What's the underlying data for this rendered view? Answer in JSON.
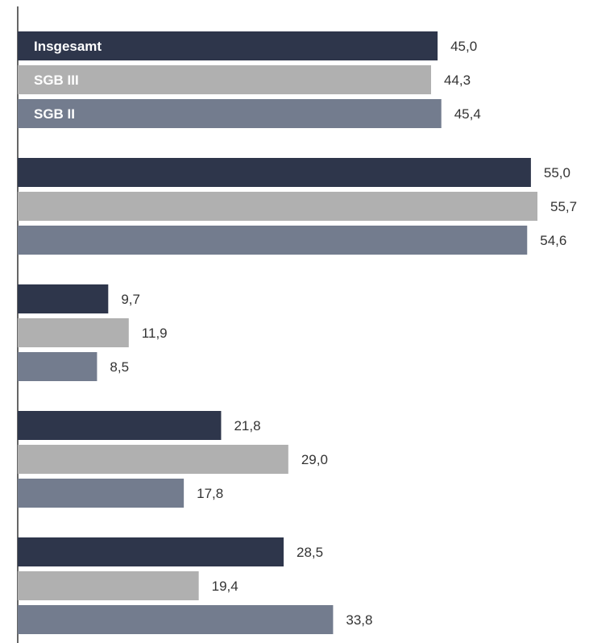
{
  "chart_data": {
    "type": "bar",
    "orientation": "horizontal",
    "groups": 5,
    "series": [
      {
        "name": "Insgesamt",
        "color": "#2e364b",
        "values": [
          45.0,
          55.0,
          9.7,
          21.8,
          28.5
        ],
        "labels": [
          "45,0",
          "55,0",
          "9,7",
          "21,8",
          "28,5"
        ]
      },
      {
        "name": "SGB III",
        "color": "#b0b0b0",
        "values": [
          44.3,
          55.7,
          11.9,
          29.0,
          19.4
        ],
        "labels": [
          "44,3",
          "55,7",
          "11,9",
          "29,0",
          "19,4"
        ]
      },
      {
        "name": "SGB II",
        "color": "#737c8e",
        "values": [
          45.4,
          54.6,
          8.5,
          17.8,
          33.8
        ],
        "labels": [
          "45,4",
          "54,6",
          "8,5",
          "17,8",
          "33,8"
        ]
      }
    ],
    "legend_placement": "inside-first-group-bars",
    "xlim": [
      0,
      60
    ],
    "grid": false
  }
}
